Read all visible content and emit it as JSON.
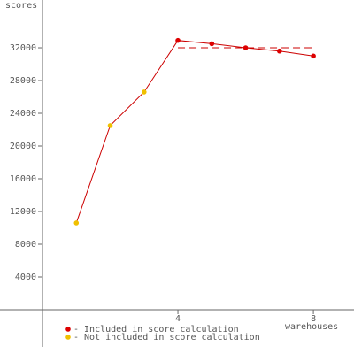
{
  "chart_data": {
    "type": "line",
    "y_label": "scores",
    "x_label": "warehouses",
    "xlim": [
      0,
      9.2
    ],
    "ylim": [
      -4540,
      37840
    ],
    "xticks": [
      4,
      8
    ],
    "yticks": [
      4000,
      8000,
      12000,
      16000,
      20000,
      24000,
      28000,
      32000
    ],
    "line_color": "#cc0000",
    "x": [
      1,
      2,
      3,
      4,
      5,
      6,
      7,
      8
    ],
    "values": [
      10600,
      22500,
      26600,
      32900,
      32500,
      32000,
      31600,
      31000
    ],
    "point_colors": [
      "#f0c000",
      "#f0c000",
      "#f0c000",
      "#dd0000",
      "#dd0000",
      "#dd0000",
      "#dd0000",
      "#dd0000"
    ],
    "score_line": {
      "xrange": [
        4,
        8
      ],
      "value": 32000,
      "color": "#cc0000"
    },
    "legend": [
      {
        "label": "- Included in score calculation",
        "color": "#dd0000"
      },
      {
        "label": "- Not included in score calculation",
        "color": "#f0c000"
      }
    ]
  }
}
